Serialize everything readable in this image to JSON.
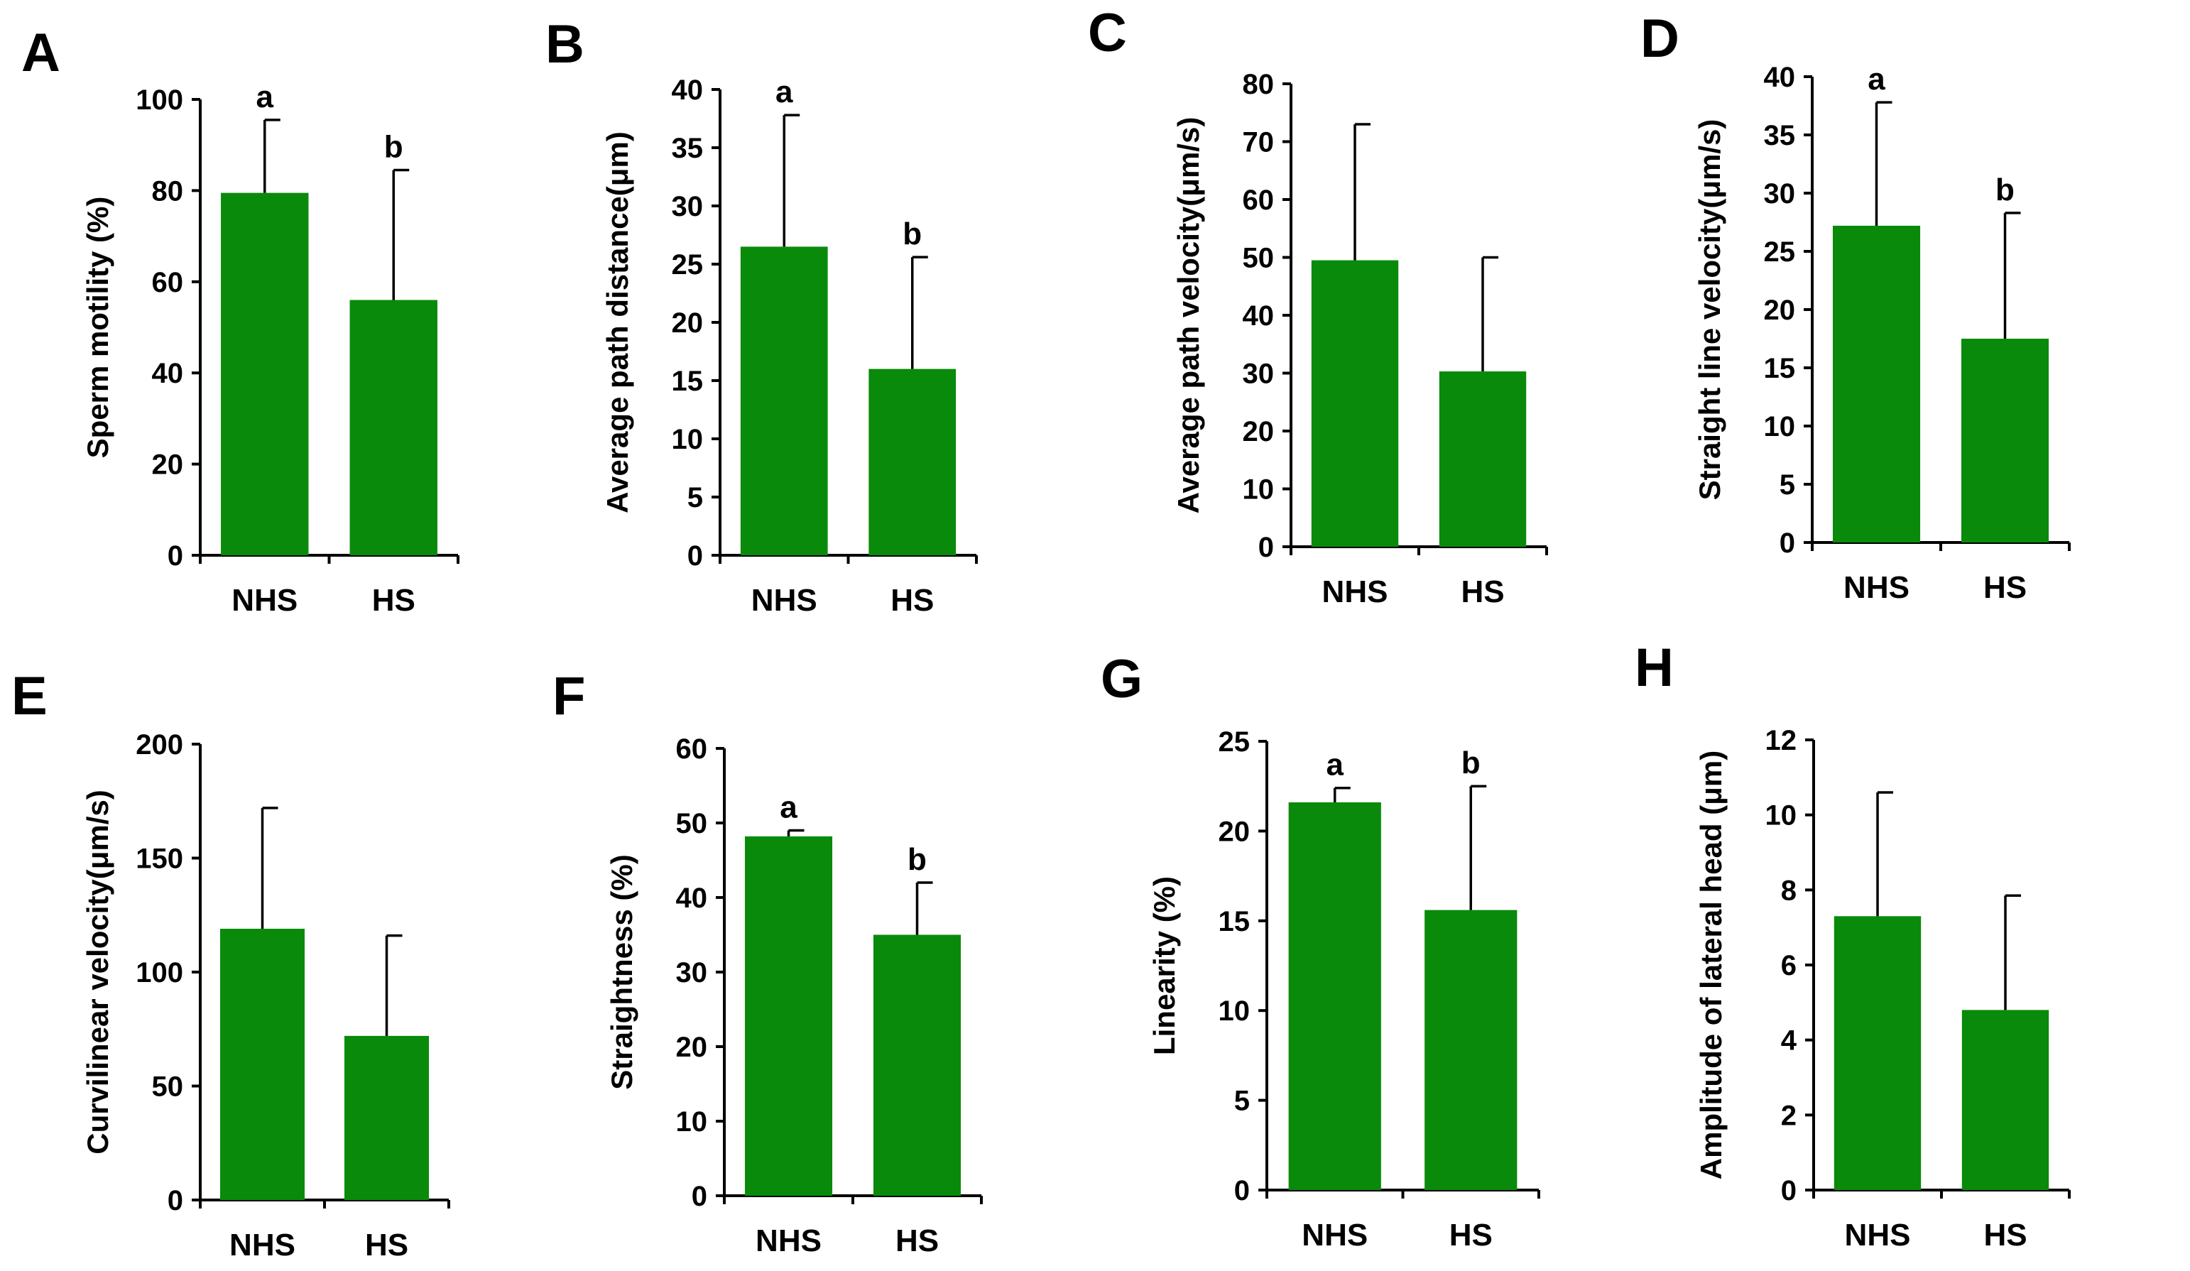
{
  "colors": {
    "bar": "#0a8a0a",
    "axis": "#000000"
  },
  "chart_data": [
    {
      "type": "bar",
      "panel": "A",
      "categories": [
        "NHS",
        "HS"
      ],
      "values": [
        79.5,
        56
      ],
      "errors": [
        16,
        28.5
      ],
      "sig": [
        "a",
        "b"
      ],
      "ylabel": "Sperm motility (%)",
      "ylim": [
        0,
        100
      ],
      "yticks": [
        0,
        20,
        40,
        60,
        80,
        100
      ]
    },
    {
      "type": "bar",
      "panel": "B",
      "categories": [
        "NHS",
        "HS"
      ],
      "values": [
        26.5,
        16
      ],
      "errors": [
        11.3,
        9.6
      ],
      "sig": [
        "a",
        "b"
      ],
      "ylabel": "Average path distance(μm)",
      "ylim": [
        0,
        40
      ],
      "yticks": [
        0,
        5,
        10,
        15,
        20,
        25,
        30,
        35,
        40
      ]
    },
    {
      "type": "bar",
      "panel": "C",
      "categories": [
        "NHS",
        "HS"
      ],
      "values": [
        49.5,
        30.3
      ],
      "errors": [
        23.5,
        19.7
      ],
      "sig": [
        "",
        ""
      ],
      "ylabel": "Average path velocity(μm/s)",
      "ylim": [
        0,
        80
      ],
      "yticks": [
        0,
        10,
        20,
        30,
        40,
        50,
        60,
        70,
        80
      ]
    },
    {
      "type": "bar",
      "panel": "D",
      "categories": [
        "NHS",
        "HS"
      ],
      "values": [
        27.2,
        17.5
      ],
      "errors": [
        10.6,
        10.8
      ],
      "sig": [
        "a",
        "b"
      ],
      "ylabel": "Straight line velocity(μm/s)",
      "ylim": [
        0,
        40
      ],
      "yticks": [
        0,
        5,
        10,
        15,
        20,
        25,
        30,
        35,
        40
      ]
    },
    {
      "type": "bar",
      "panel": "E",
      "categories": [
        "NHS",
        "HS"
      ],
      "values": [
        119,
        72
      ],
      "errors": [
        53,
        44
      ],
      "sig": [
        "",
        ""
      ],
      "ylabel": "Curvilinear velocity(μm/s)",
      "ylim": [
        0,
        200
      ],
      "yticks": [
        0,
        50,
        100,
        150,
        200
      ]
    },
    {
      "type": "bar",
      "panel": "F",
      "categories": [
        "NHS",
        "HS"
      ],
      "values": [
        48.2,
        35
      ],
      "errors": [
        0.8,
        7
      ],
      "sig": [
        "a",
        "b"
      ],
      "ylabel": "Straightness (%)",
      "ylim": [
        0,
        60
      ],
      "yticks": [
        0,
        10,
        20,
        30,
        40,
        50,
        60
      ]
    },
    {
      "type": "bar",
      "panel": "G",
      "categories": [
        "NHS",
        "HS"
      ],
      "values": [
        21.6,
        15.6
      ],
      "errors": [
        0.8,
        6.9
      ],
      "sig": [
        "a",
        "b"
      ],
      "ylabel": "Linearity (%)",
      "ylim": [
        0,
        25
      ],
      "yticks": [
        0,
        5,
        10,
        15,
        20,
        25
      ]
    },
    {
      "type": "bar",
      "panel": "H",
      "categories": [
        "NHS",
        "HS"
      ],
      "values": [
        7.3,
        4.8
      ],
      "errors": [
        3.3,
        3.05
      ],
      "sig": [
        "",
        ""
      ],
      "ylabel": "Amplitude of lateral head (μm)",
      "ylim": [
        0,
        12
      ],
      "yticks": [
        0,
        2,
        4,
        6,
        8,
        10,
        12
      ]
    }
  ]
}
